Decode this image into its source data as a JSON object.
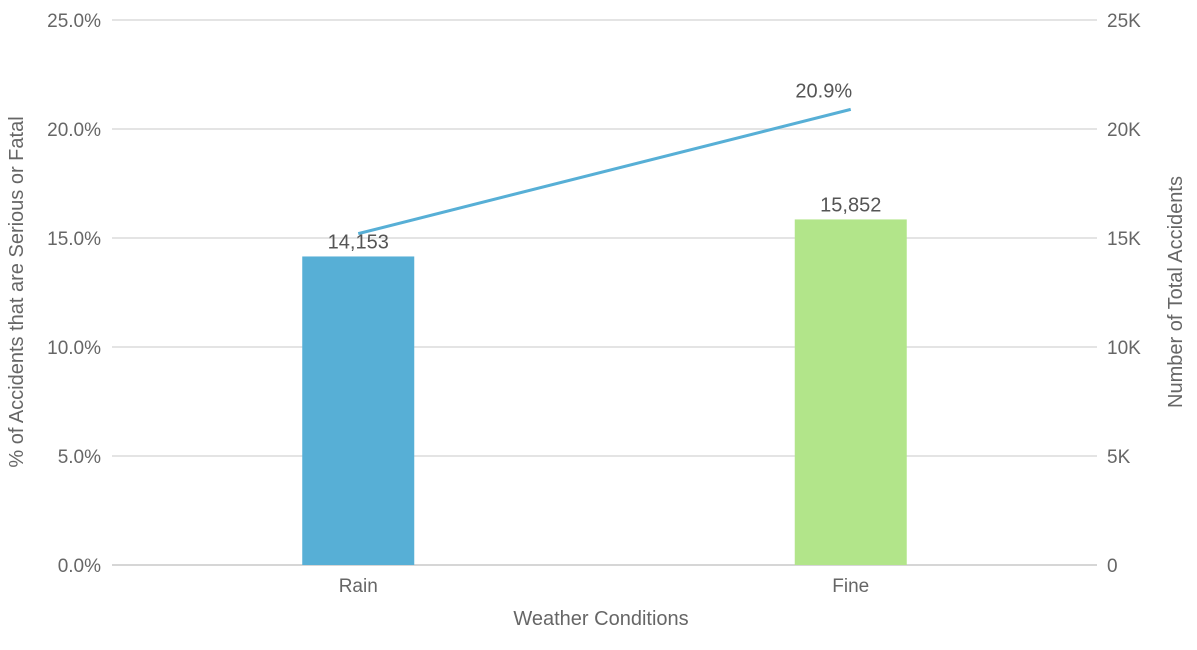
{
  "chart_data": {
    "type": "bar+line",
    "categories": [
      "Rain",
      "Fine"
    ],
    "bar_series": {
      "axis": "right",
      "values": [
        14153,
        15852
      ],
      "value_labels": [
        "14,153",
        "15,852"
      ],
      "colors": [
        "#57afd6",
        "#b2e58a"
      ]
    },
    "line_series": {
      "axis": "left",
      "values": [
        15.2,
        20.9
      ],
      "value_labels": [
        "",
        "20.9%"
      ],
      "color": "#57afd6"
    },
    "xlabel": "Weather Conditions",
    "ylabel_left": "% of Accidents that are Serious or Fatal",
    "ylabel_right": "Number of Total Accidents",
    "ylim_left": [
      0,
      25
    ],
    "ylim_right": [
      0,
      25000
    ],
    "left_ticks": [
      "0.0%",
      "5.0%",
      "10.0%",
      "15.0%",
      "20.0%",
      "25.0%"
    ],
    "right_ticks": [
      "0",
      "5K",
      "10K",
      "15K",
      "20K",
      "25K"
    ],
    "grid": true,
    "legend": "none"
  }
}
